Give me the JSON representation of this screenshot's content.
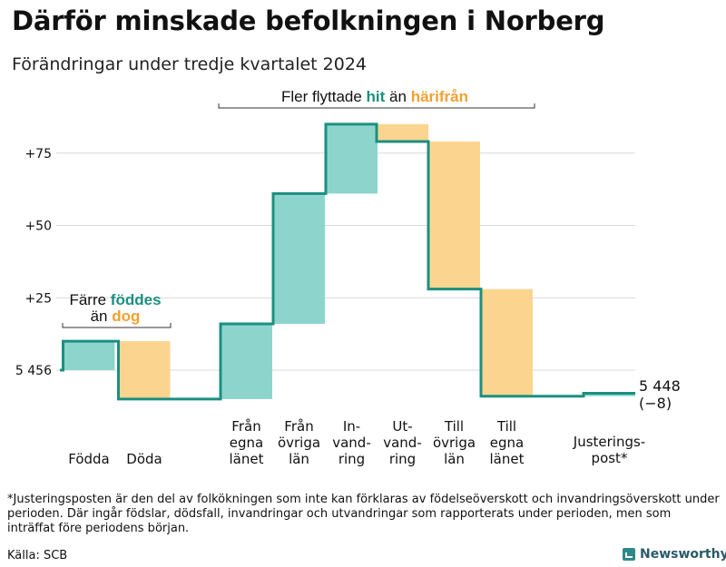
{
  "title": "Därför minskade befolkningen i Norberg",
  "subtitle": "Förändringar under tredje kvartalet 2024",
  "colors": {
    "increase": "#8dd5cc",
    "decrease": "#fbd58f",
    "line": "#1c8f80",
    "hit": "#1c8f80",
    "harifran": "#f2a030",
    "grid": "#d9d9d9"
  },
  "chart_data": {
    "type": "waterfall",
    "title": "Därför minskade befolkningen i Norberg",
    "subtitle": "Förändringar under tredje kvartalet 2024",
    "start_value": 5456,
    "start_label": "5 456",
    "end_value": 5448,
    "end_label": "5 448",
    "end_change_label": "(−8)",
    "y_ticks": [
      {
        "offset": 0,
        "label": "5 456"
      },
      {
        "offset": 25,
        "label": "+25"
      },
      {
        "offset": 50,
        "label": "+50"
      },
      {
        "offset": 75,
        "label": "+75"
      }
    ],
    "ylim": [
      -10,
      88
    ],
    "steps": [
      {
        "label_lines": [
          "Födda"
        ],
        "delta": 10
      },
      {
        "label_lines": [
          "Döda"
        ],
        "delta": -20
      },
      {
        "label_lines": [
          "Från",
          "egna",
          "länet"
        ],
        "delta": 26
      },
      {
        "label_lines": [
          "Från",
          "övriga",
          "län"
        ],
        "delta": 45
      },
      {
        "label_lines": [
          "In-",
          "vand-",
          "ring"
        ],
        "delta": 24
      },
      {
        "label_lines": [
          "Ut-",
          "vand-",
          "ring"
        ],
        "delta": -6
      },
      {
        "label_lines": [
          "Till",
          "övriga",
          "län"
        ],
        "delta": -51
      },
      {
        "label_lines": [
          "Till",
          "egna",
          "länet"
        ],
        "delta": -37
      },
      {
        "label_lines": [
          "Justerings-",
          "post*"
        ],
        "delta": 1
      }
    ]
  },
  "annotations": {
    "births": {
      "line1_pre": "Färre ",
      "line1_em": "föddes",
      "line2_pre": "än ",
      "line2_em": "dog"
    },
    "migration": {
      "pre": "Fler flyttade ",
      "hit": "hit",
      "mid": " än ",
      "harifran": "härifrån"
    }
  },
  "footnote": "*Justeringsposten är den del av folkökningen som inte kan förklaras av födelseöverskott och invandringsöverskott under perioden. Där ingår födslar, dödsfall, invandringar och utvandringar som rapporterats under perioden, men som inträffat före periodens början.",
  "source": "Källa: SCB",
  "logo_text": "Newsworthy"
}
